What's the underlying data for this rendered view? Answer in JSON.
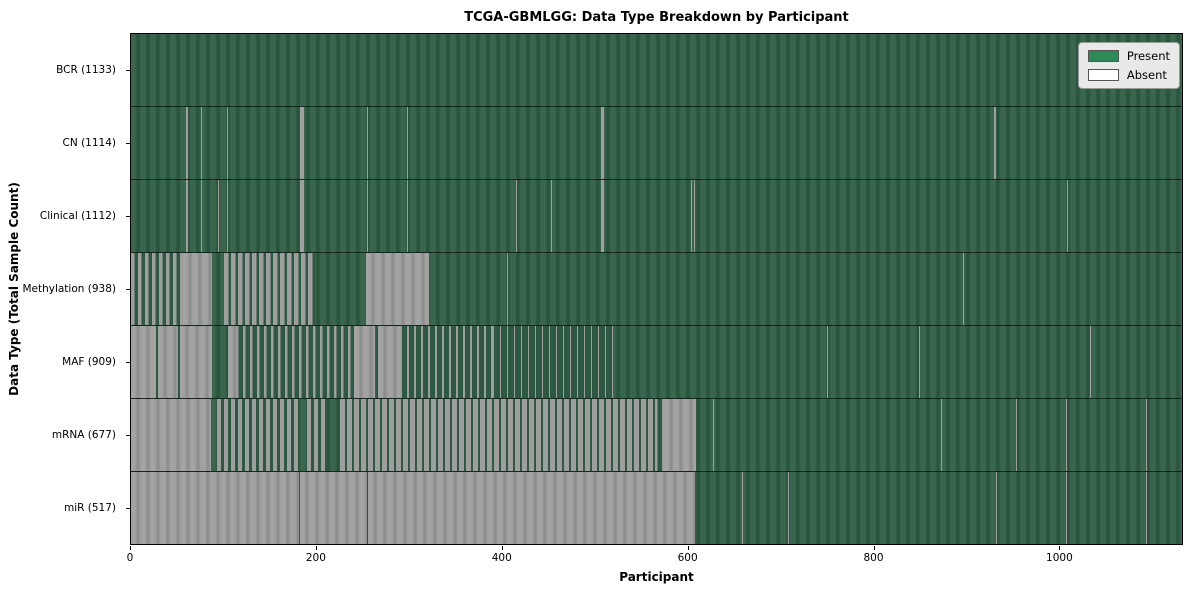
{
  "title": "TCGA-GBMLGG: Data Type Breakdown by Participant",
  "colors": {
    "present": "#2e8b57",
    "absent": "#ffffff",
    "present_stripe_light": "#3a664d",
    "present_stripe_dark": "#24503a",
    "absent_stripe_light": "#a3a3a3",
    "absent_stripe_dark": "#8a8a8a",
    "mixed_gray": "#9e9e9e",
    "mixed_green": "#2d5942",
    "legend_bg": "#e9e9e9",
    "figure_bg": "#ffffff"
  },
  "legend": {
    "entries": [
      {
        "label": "Present",
        "color": "#2e8b57"
      },
      {
        "label": "Absent",
        "color": "#ffffff"
      }
    ]
  },
  "chart_data": {
    "type": "heatmap",
    "title": "TCGA-GBMLGG: Data Type Breakdown by Participant",
    "xlabel": "Participant",
    "ylabel": "Data Type (Total Sample Count)",
    "x_ticks": [
      0,
      200,
      400,
      600,
      800,
      1000
    ],
    "x_max": 1133,
    "grid": false,
    "legend_position": "upper right",
    "legend_labels": [
      "Present",
      "Absent"
    ],
    "rows": [
      {
        "label": "BCR (1133)",
        "name": "BCR",
        "present_count": 1133,
        "absent": [],
        "mixed": []
      },
      {
        "label": "CN (1114)",
        "name": "CN",
        "present_count": 1114,
        "absent": [
          [
            59,
            61
          ],
          [
            75,
            76
          ],
          [
            104,
            105
          ],
          [
            182,
            186
          ],
          [
            254,
            255
          ],
          [
            297,
            298
          ],
          [
            507,
            510
          ],
          [
            930,
            932
          ]
        ],
        "mixed": []
      },
      {
        "label": "Clinical (1112)",
        "name": "Clinical",
        "present_count": 1112,
        "absent": [
          [
            59,
            61
          ],
          [
            75,
            76
          ],
          [
            94,
            95
          ],
          [
            104,
            105
          ],
          [
            182,
            186
          ],
          [
            254,
            255
          ],
          [
            297,
            298
          ],
          [
            415,
            416
          ],
          [
            453,
            454
          ],
          [
            507,
            510
          ],
          [
            604,
            605
          ],
          [
            607,
            608
          ],
          [
            1009,
            1010
          ]
        ],
        "mixed": []
      },
      {
        "label": "Methylation (938)",
        "name": "Methylation",
        "present_count": 938,
        "absent": [
          [
            56,
            87
          ],
          [
            253,
            321
          ],
          [
            405,
            406
          ],
          [
            897,
            898
          ]
        ],
        "mixed": [
          [
            0,
            56,
            0.5
          ],
          [
            100,
            198,
            0.62
          ]
        ]
      },
      {
        "label": "MAF (909)",
        "name": "MAF",
        "present_count": 909,
        "absent": [
          [
            0,
            27
          ],
          [
            29,
            51
          ],
          [
            53,
            87
          ],
          [
            105,
            113
          ],
          [
            240,
            263
          ],
          [
            266,
            290
          ],
          [
            750,
            751
          ],
          [
            850,
            851
          ],
          [
            1034,
            1035
          ]
        ],
        "mixed": [
          [
            113,
            240,
            0.35
          ],
          [
            290,
            390,
            0.3
          ],
          [
            390,
            520,
            0.12
          ]
        ]
      },
      {
        "label": "mRNA (677)",
        "name": "mRNA",
        "present_count": 677,
        "absent": [
          [
            0,
            86
          ],
          [
            575,
            609
          ],
          [
            627,
            628
          ],
          [
            873,
            874
          ],
          [
            954,
            955
          ],
          [
            1008,
            1009
          ],
          [
            1094,
            1095
          ]
        ],
        "mixed": [
          [
            93,
            180,
            0.6
          ],
          [
            190,
            210,
            0.55
          ],
          [
            225,
            565,
            0.74
          ],
          [
            565,
            575,
            0.35
          ]
        ]
      },
      {
        "label": "miR (517)",
        "name": "miR",
        "present_count": 517,
        "absent": [
          [
            0,
            181
          ],
          [
            182,
            254
          ],
          [
            255,
            608
          ],
          [
            659,
            660
          ],
          [
            708,
            709
          ],
          [
            933,
            934
          ],
          [
            1008,
            1009
          ],
          [
            1094,
            1095
          ]
        ],
        "mixed": []
      }
    ]
  }
}
